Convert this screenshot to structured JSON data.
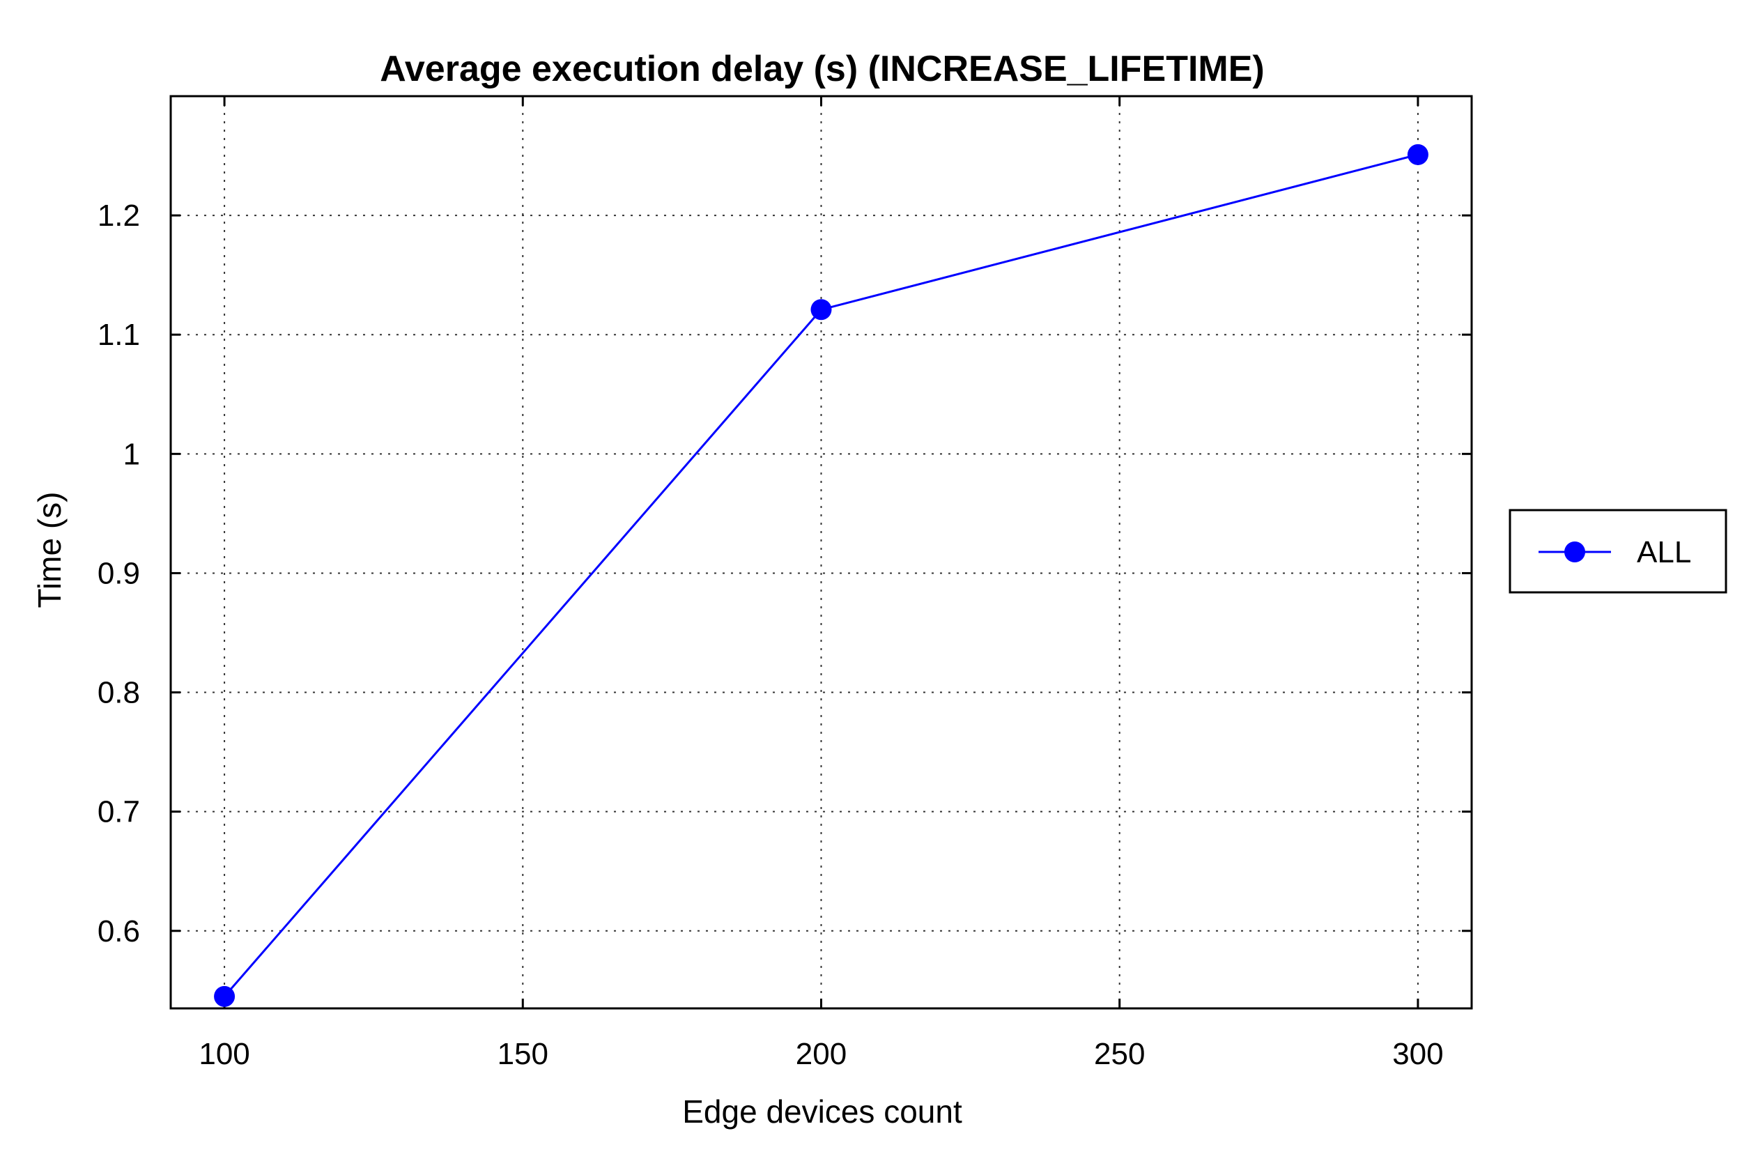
{
  "chart_data": {
    "type": "line",
    "title": "Average execution delay (s) (INCREASE_LIFETIME)",
    "xlabel": "Edge devices count",
    "ylabel": "Time (s)",
    "xlim": [
      91,
      309
    ],
    "ylim": [
      0.535,
      1.3
    ],
    "x_ticks": [
      {
        "value": 100,
        "label": "100"
      },
      {
        "value": 150,
        "label": "150"
      },
      {
        "value": 200,
        "label": "200"
      },
      {
        "value": 250,
        "label": "250"
      },
      {
        "value": 300,
        "label": "300"
      }
    ],
    "y_ticks": [
      {
        "value": 0.6,
        "label": "0.6"
      },
      {
        "value": 0.7,
        "label": "0.7"
      },
      {
        "value": 0.8,
        "label": "0.8"
      },
      {
        "value": 0.9,
        "label": "0.9"
      },
      {
        "value": 1.0,
        "label": "1"
      },
      {
        "value": 1.1,
        "label": "1.1"
      },
      {
        "value": 1.2,
        "label": "1.2"
      }
    ],
    "grid": true,
    "legend_position": "right",
    "series": [
      {
        "name": "ALL",
        "color": "#0000ff",
        "marker": "circle",
        "x": [
          100,
          200,
          300
        ],
        "y": [
          0.545,
          1.121,
          1.251
        ]
      }
    ]
  }
}
